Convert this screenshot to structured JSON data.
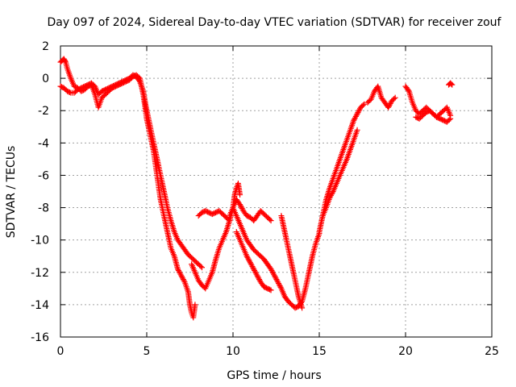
{
  "chart_data": {
    "type": "scatter",
    "title": "Day 097 of 2024, Sidereal Day-to-day VTEC variation (SDTVAR) for receiver zouf",
    "xlabel": "GPS time / hours",
    "ylabel": "SDTVAR / TECUs",
    "xlim": [
      0,
      25
    ],
    "ylim": [
      -16,
      2
    ],
    "xticks": [
      0,
      5,
      10,
      15,
      20,
      25
    ],
    "xtick_labels": [
      "0",
      "5",
      "10",
      "15",
      "20",
      "25"
    ],
    "yticks": [
      2,
      0,
      -2,
      -4,
      -6,
      -8,
      -10,
      -12,
      -14,
      -16
    ],
    "ytick_labels": [
      "2",
      "0",
      "-2",
      "-4",
      "-6",
      "-8",
      "-10",
      "-12",
      "-14",
      "-16"
    ],
    "grid": true,
    "marker": "+",
    "color": "#ff0000",
    "series": [
      {
        "name": "trace-1",
        "x": [
          0.0,
          0.1,
          0.2,
          0.3,
          0.4,
          0.6,
          0.8,
          1.0,
          1.2,
          1.4,
          1.6,
          1.8,
          2.0,
          2.2,
          2.4,
          2.6,
          2.8,
          3.0,
          3.2,
          3.4,
          3.6,
          3.8,
          4.0,
          4.2,
          4.4,
          4.6,
          4.8,
          5.0,
          5.2,
          5.4,
          5.6,
          5.8,
          6.0,
          6.2,
          6.4,
          6.6,
          6.8,
          7.0,
          7.2,
          7.4,
          7.5,
          7.6,
          7.7,
          7.8
        ],
        "y": [
          1.0,
          1.1,
          1.2,
          1.0,
          0.6,
          0.0,
          -0.5,
          -0.6,
          -0.8,
          -0.7,
          -0.5,
          -0.4,
          -1.0,
          -1.8,
          -1.2,
          -1.0,
          -0.8,
          -0.6,
          -0.5,
          -0.4,
          -0.3,
          -0.2,
          -0.1,
          0.1,
          0.2,
          0.0,
          -1.0,
          -2.5,
          -3.5,
          -4.5,
          -6.0,
          -7.5,
          -8.5,
          -9.5,
          -10.5,
          -11.0,
          -11.8,
          -12.2,
          -12.6,
          -13.2,
          -14.0,
          -14.5,
          -14.8,
          -14.0
        ]
      },
      {
        "name": "trace-2",
        "x": [
          0.0,
          0.2,
          0.4,
          0.6,
          0.8,
          1.0,
          1.2,
          1.4,
          1.6,
          1.8,
          2.0,
          2.2,
          2.4,
          2.6,
          2.8,
          3.0,
          3.2,
          3.4,
          3.6,
          3.8,
          4.0,
          4.2,
          4.4,
          4.6,
          4.8,
          5.0,
          5.2,
          5.4,
          5.6,
          5.8,
          6.0,
          6.2,
          6.4,
          6.6,
          6.8,
          7.0,
          7.2,
          7.4,
          7.6,
          7.8,
          8.0,
          8.2
        ],
        "y": [
          -0.5,
          -0.6,
          -0.8,
          -0.9,
          -0.9,
          -0.7,
          -0.6,
          -0.5,
          -0.4,
          -0.3,
          -0.5,
          -1.0,
          -0.8,
          -0.7,
          -0.6,
          -0.5,
          -0.4,
          -0.3,
          -0.2,
          -0.1,
          0.0,
          0.2,
          0.1,
          -0.2,
          -0.8,
          -2.0,
          -3.0,
          -4.0,
          -5.0,
          -6.0,
          -7.0,
          -8.0,
          -8.8,
          -9.5,
          -10.0,
          -10.3,
          -10.6,
          -10.9,
          -11.1,
          -11.3,
          -11.5,
          -11.7
        ]
      },
      {
        "name": "trace-3",
        "x": [
          7.6,
          7.8,
          8.0,
          8.2,
          8.4,
          8.6,
          8.8,
          9.0,
          9.2,
          9.4,
          9.6,
          9.8,
          10.0,
          10.1,
          10.2,
          10.3,
          10.4
        ],
        "y": [
          -11.5,
          -12.0,
          -12.5,
          -12.8,
          -13.0,
          -12.5,
          -12.0,
          -11.2,
          -10.5,
          -10.0,
          -9.5,
          -8.8,
          -8.0,
          -7.2,
          -6.8,
          -6.5,
          -7.2
        ]
      },
      {
        "name": "trace-4",
        "x": [
          8.0,
          8.2,
          8.4,
          8.6,
          8.8,
          9.0,
          9.2,
          9.4,
          9.6,
          9.8
        ],
        "y": [
          -8.5,
          -8.3,
          -8.2,
          -8.3,
          -8.4,
          -8.3,
          -8.2,
          -8.4,
          -8.6,
          -8.8
        ]
      },
      {
        "name": "trace-5",
        "x": [
          9.8,
          10.0,
          10.2,
          10.4,
          10.6,
          10.8,
          11.0,
          11.2,
          11.4,
          11.6,
          11.8,
          12.0,
          12.2
        ],
        "y": [
          -8.5,
          -8.0,
          -7.5,
          -7.8,
          -8.2,
          -8.5,
          -8.6,
          -8.8,
          -8.5,
          -8.2,
          -8.4,
          -8.6,
          -8.8
        ]
      },
      {
        "name": "trace-6",
        "x": [
          10.0,
          10.2,
          10.4,
          10.6,
          10.8,
          11.0,
          11.2,
          11.4,
          11.6,
          11.8,
          12.0,
          12.2,
          12.4,
          12.6,
          12.8,
          13.0,
          13.2,
          13.4,
          13.6,
          13.8,
          14.0,
          14.2,
          14.4,
          14.6,
          14.8,
          15.0
        ],
        "y": [
          -8.0,
          -8.5,
          -9.0,
          -9.5,
          -10.0,
          -10.3,
          -10.6,
          -10.8,
          -11.0,
          -11.2,
          -11.5,
          -11.8,
          -12.2,
          -12.6,
          -13.0,
          -13.5,
          -13.8,
          -14.0,
          -14.2,
          -14.1,
          -13.8,
          -13.0,
          -12.0,
          -11.0,
          -10.2,
          -9.6
        ]
      },
      {
        "name": "trace-7",
        "x": [
          10.2,
          10.4,
          10.6,
          10.8,
          11.0,
          11.2,
          11.4,
          11.6,
          11.8,
          12.0,
          12.2
        ],
        "y": [
          -9.5,
          -10.0,
          -10.5,
          -11.0,
          -11.4,
          -11.8,
          -12.2,
          -12.6,
          -12.9,
          -13.0,
          -13.1
        ]
      },
      {
        "name": "trace-8",
        "x": [
          12.8,
          13.0,
          13.2,
          13.4,
          13.6,
          13.8,
          14.0
        ],
        "y": [
          -8.5,
          -9.5,
          -10.5,
          -11.5,
          -12.5,
          -13.5,
          -14.2
        ]
      },
      {
        "name": "trace-9",
        "x": [
          15.0,
          15.2,
          15.4,
          15.6,
          15.8,
          16.0,
          16.2,
          16.4,
          16.6,
          16.8,
          17.0,
          17.2,
          17.4,
          17.6
        ],
        "y": [
          -9.5,
          -8.5,
          -7.5,
          -6.8,
          -6.2,
          -5.6,
          -5.0,
          -4.4,
          -3.8,
          -3.2,
          -2.6,
          -2.2,
          -1.8,
          -1.6
        ]
      },
      {
        "name": "trace-10",
        "x": [
          15.2,
          15.4,
          15.6,
          15.8,
          16.0,
          16.2,
          16.4,
          16.6,
          16.8,
          17.0,
          17.2
        ],
        "y": [
          -8.5,
          -8.0,
          -7.4,
          -7.0,
          -6.5,
          -6.0,
          -5.5,
          -5.0,
          -4.4,
          -3.8,
          -3.2
        ]
      },
      {
        "name": "trace-11",
        "x": [
          17.8,
          18.0,
          18.2,
          18.4,
          18.6,
          18.8,
          19.0,
          19.2,
          19.4
        ],
        "y": [
          -1.5,
          -1.3,
          -0.8,
          -0.5,
          -1.2,
          -1.5,
          -1.8,
          -1.4,
          -1.2
        ]
      },
      {
        "name": "trace-12",
        "x": [
          20.0,
          20.2,
          20.4,
          20.6,
          20.8,
          21.0,
          21.2,
          21.4,
          21.6,
          21.8,
          22.0,
          22.2,
          22.4,
          22.6
        ],
        "y": [
          -0.5,
          -0.8,
          -1.5,
          -2.0,
          -2.2,
          -2.0,
          -1.8,
          -2.0,
          -2.2,
          -2.4,
          -2.2,
          -2.0,
          -1.8,
          -2.3
        ]
      },
      {
        "name": "trace-13",
        "x": [
          20.6,
          20.8,
          21.0,
          21.2,
          21.4,
          21.6,
          21.8,
          22.0,
          22.2,
          22.4,
          22.6
        ],
        "y": [
          -2.4,
          -2.5,
          -2.3,
          -2.1,
          -2.0,
          -2.2,
          -2.4,
          -2.5,
          -2.6,
          -2.7,
          -2.5
        ]
      },
      {
        "name": "trace-14",
        "x": [
          22.5,
          22.6,
          22.7
        ],
        "y": [
          -0.4,
          -0.3,
          -0.4
        ]
      }
    ]
  }
}
